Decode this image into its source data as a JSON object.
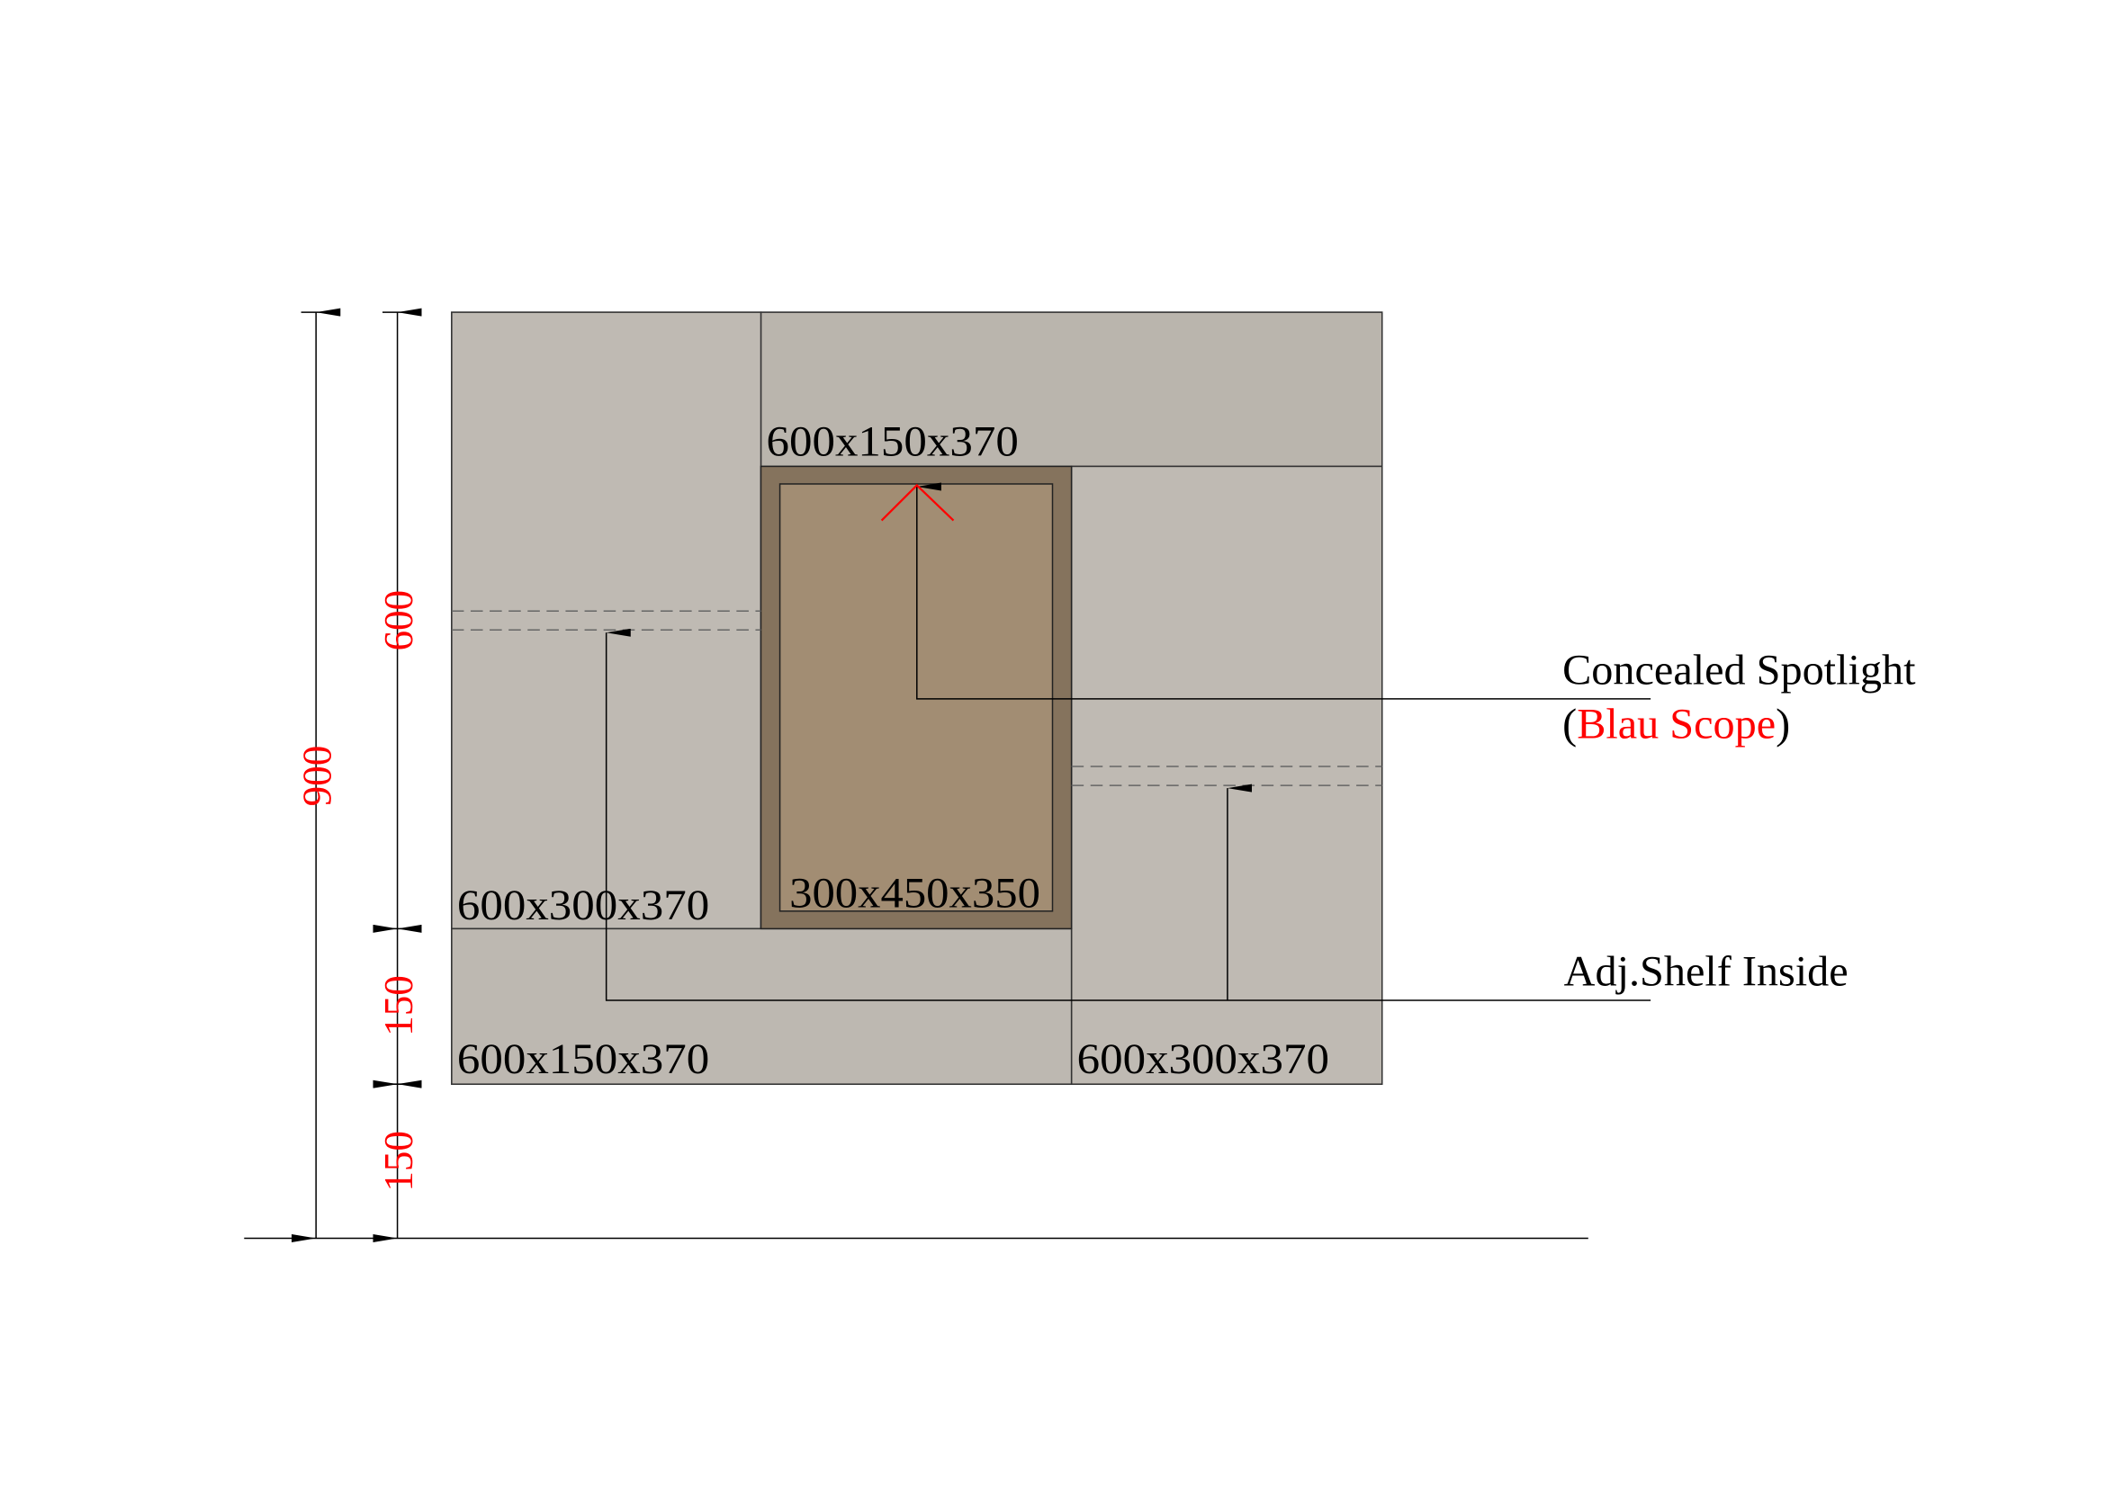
{
  "colors": {
    "carcass": "#bdb8b1",
    "drawer_frame": "#85735d",
    "drawer_inner": "#a28d73",
    "dimension_text": "#ff0000",
    "line": "#000000",
    "dashed_shelf": "#777777"
  },
  "modules": {
    "top_right": "600x150x370",
    "left": "600x300x370",
    "center_niche": "300x450x350",
    "bottom_left": "600x150x370",
    "bottom_right": "600x300x370"
  },
  "dimensions": {
    "overall": "900",
    "upper": "600",
    "middle": "150",
    "plinth": "150"
  },
  "notes": {
    "spotlight": "Concealed Spotlight",
    "spotlight_open": "(",
    "spotlight_brand": "Blau Scope",
    "spotlight_close": ")",
    "shelf": "Adj.Shelf Inside"
  }
}
